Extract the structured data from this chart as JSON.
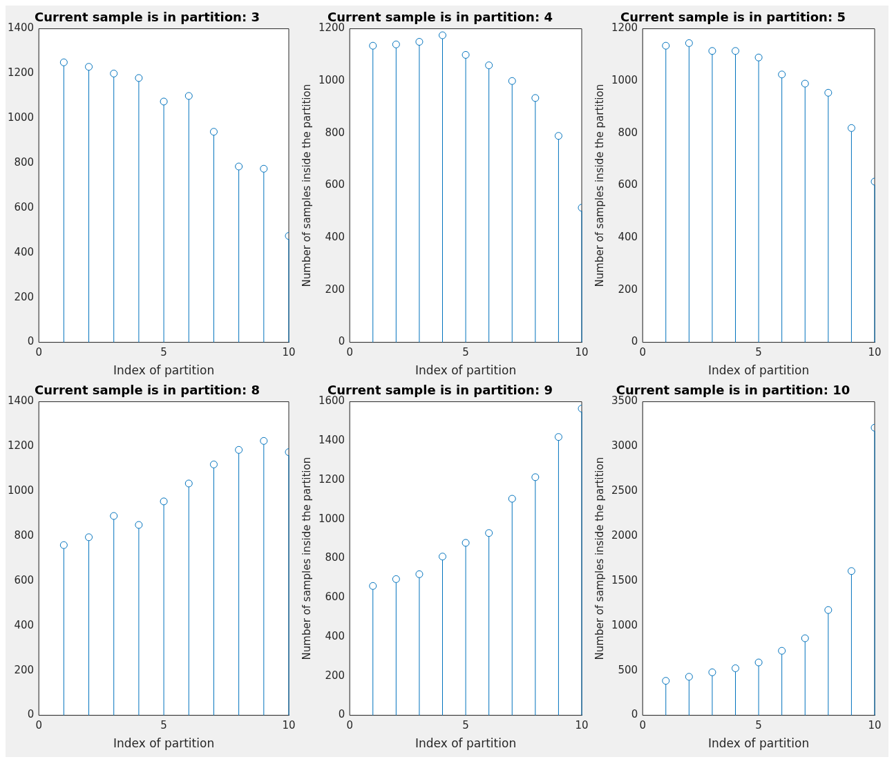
{
  "chart_data": [
    {
      "type": "lollipop",
      "title": "Current sample is in partition: 3",
      "xlabel": "Index of partition",
      "x": [
        1,
        2,
        3,
        4,
        5,
        6,
        7,
        8,
        9,
        10
      ],
      "values": [
        1250,
        1230,
        1200,
        1180,
        1075,
        1100,
        940,
        785,
        775,
        475
      ],
      "color": "#0072bd",
      "marker": "circle",
      "xlim": [
        0,
        10
      ],
      "xticks": [
        0,
        5,
        10
      ],
      "ylim": [
        0,
        1400
      ],
      "yticks": [
        0,
        200,
        400,
        600,
        800,
        1000,
        1200,
        1400
      ],
      "grid": false,
      "legend": false
    },
    {
      "type": "lollipop",
      "title": "Current sample is in partition: 4",
      "xlabel": "Index of partition",
      "ylabel": "Number of samples inside the partition",
      "x": [
        1,
        2,
        3,
        4,
        5,
        6,
        7,
        8,
        9,
        10
      ],
      "values": [
        1135,
        1140,
        1150,
        1175,
        1100,
        1060,
        1000,
        935,
        790,
        515
      ],
      "color": "#0072bd",
      "marker": "circle",
      "xlim": [
        0,
        10
      ],
      "xticks": [
        0,
        5,
        10
      ],
      "ylim": [
        0,
        1200
      ],
      "yticks": [
        0,
        200,
        400,
        600,
        800,
        1000,
        1200
      ],
      "grid": false,
      "legend": false
    },
    {
      "type": "lollipop",
      "title": "Current sample is in partition: 5",
      "xlabel": "Index of partition",
      "ylabel": "Number of samples inside the partition",
      "x": [
        1,
        2,
        3,
        4,
        5,
        6,
        7,
        8,
        9,
        10
      ],
      "values": [
        1135,
        1145,
        1115,
        1115,
        1090,
        1025,
        990,
        955,
        820,
        615
      ],
      "color": "#0072bd",
      "marker": "circle",
      "xlim": [
        0,
        10
      ],
      "xticks": [
        0,
        5,
        10
      ],
      "ylim": [
        0,
        1200
      ],
      "yticks": [
        0,
        200,
        400,
        600,
        800,
        1000,
        1200
      ],
      "grid": false,
      "legend": false
    },
    {
      "type": "lollipop",
      "title": "Current sample is in partition: 8",
      "xlabel": "Index of partition",
      "x": [
        1,
        2,
        3,
        4,
        5,
        6,
        7,
        8,
        9,
        10
      ],
      "values": [
        760,
        795,
        890,
        850,
        955,
        1035,
        1120,
        1185,
        1225,
        1175
      ],
      "color": "#0072bd",
      "marker": "circle",
      "xlim": [
        0,
        10
      ],
      "xticks": [
        0,
        5,
        10
      ],
      "ylim": [
        0,
        1400
      ],
      "yticks": [
        0,
        200,
        400,
        600,
        800,
        1000,
        1200,
        1400
      ],
      "grid": false,
      "legend": false
    },
    {
      "type": "lollipop",
      "title": "Current sample is in partition: 9",
      "xlabel": "Index of partition",
      "ylabel": "Number of samples inside the partition",
      "x": [
        1,
        2,
        3,
        4,
        5,
        6,
        7,
        8,
        9,
        10
      ],
      "values": [
        660,
        695,
        720,
        810,
        880,
        930,
        1105,
        1215,
        1420,
        1565
      ],
      "color": "#0072bd",
      "marker": "circle",
      "xlim": [
        0,
        10
      ],
      "xticks": [
        0,
        5,
        10
      ],
      "ylim": [
        0,
        1600
      ],
      "yticks": [
        0,
        200,
        400,
        600,
        800,
        1000,
        1200,
        1400,
        1600
      ],
      "grid": false,
      "legend": false
    },
    {
      "type": "lollipop",
      "title": "Current sample is in partition: 10",
      "xlabel": "Index of partition",
      "ylabel": "Number of samples inside the partition",
      "x": [
        1,
        2,
        3,
        4,
        5,
        6,
        7,
        8,
        9,
        10
      ],
      "values": [
        385,
        430,
        480,
        525,
        590,
        720,
        860,
        1175,
        1610,
        3210
      ],
      "color": "#0072bd",
      "marker": "circle",
      "xlim": [
        0,
        10
      ],
      "xticks": [
        0,
        5,
        10
      ],
      "ylim": [
        0,
        3500
      ],
      "yticks": [
        0,
        500,
        1000,
        1500,
        2000,
        2500,
        3000,
        3500
      ],
      "grid": false,
      "legend": false
    }
  ]
}
